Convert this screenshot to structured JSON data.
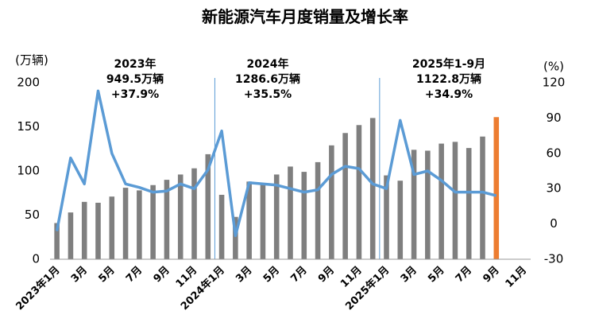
{
  "chart_data": {
    "type": "bar-line",
    "title": "新能源汽车月度销量及增长率",
    "y_unit": "(万辆)",
    "y2_unit": "(%)",
    "categories": [
      "2023年1月",
      null,
      "3月",
      null,
      "5月",
      null,
      "7月",
      null,
      "9月",
      null,
      "11月",
      null,
      "2024年1月",
      null,
      "3月",
      null,
      "5月",
      null,
      "7月",
      null,
      "9月",
      null,
      "11月",
      null,
      "2025年1月",
      null,
      "3月",
      null,
      "5月",
      null,
      "7月",
      null,
      "9月",
      null,
      "11月"
    ],
    "series": [
      {
        "type": "bar",
        "color": "#7f7f7f",
        "colors": [
          "#7f7f7f",
          "#7f7f7f",
          "#7f7f7f",
          "#7f7f7f",
          "#7f7f7f",
          "#7f7f7f",
          "#7f7f7f",
          "#7f7f7f",
          "#7f7f7f",
          "#7f7f7f",
          "#7f7f7f",
          "#7f7f7f",
          "#7f7f7f",
          "#7f7f7f",
          "#7f7f7f",
          "#7f7f7f",
          "#7f7f7f",
          "#7f7f7f",
          "#7f7f7f",
          "#7f7f7f",
          "#7f7f7f",
          "#7f7f7f",
          "#7f7f7f",
          "#7f7f7f",
          "#7f7f7f",
          "#7f7f7f",
          "#7f7f7f",
          "#7f7f7f",
          "#7f7f7f",
          "#7f7f7f",
          "#7f7f7f",
          "#7f7f7f",
          "#ed7d31",
          null,
          null
        ],
        "values": [
          41,
          53,
          65,
          64,
          71,
          81,
          78,
          84,
          90,
          96,
          103,
          119,
          73,
          48,
          88,
          85,
          96,
          105,
          99,
          110,
          129,
          143,
          152,
          160,
          95,
          89,
          124,
          123,
          131,
          133,
          126,
          139,
          161,
          null,
          null
        ]
      },
      {
        "type": "line",
        "axis": "y2",
        "color": "#5b9bd5",
        "values": [
          -6,
          56,
          34,
          113,
          60,
          34,
          31,
          27,
          28,
          34,
          30,
          46,
          79,
          -10,
          35,
          34,
          33,
          30,
          27,
          29,
          42,
          49,
          47,
          34,
          30,
          88,
          42,
          45,
          37,
          27,
          27,
          27,
          24,
          null,
          null
        ]
      }
    ],
    "ylim": [
      0,
      200
    ],
    "yticks": [
      0,
      50,
      100,
      150,
      200
    ],
    "y2lim": [
      -30,
      120
    ],
    "y2ticks": [
      -30,
      0,
      30,
      60,
      90,
      120
    ],
    "annotations": [
      {
        "lines": [
          "2023年",
          "949.5万辆",
          "+37.9%"
        ]
      },
      {
        "lines": [
          "2024年",
          "1286.6万辆",
          "+35.5%"
        ]
      },
      {
        "lines": [
          "2025年1-9月",
          "1122.8万辆",
          "+34.9%"
        ]
      }
    ]
  }
}
